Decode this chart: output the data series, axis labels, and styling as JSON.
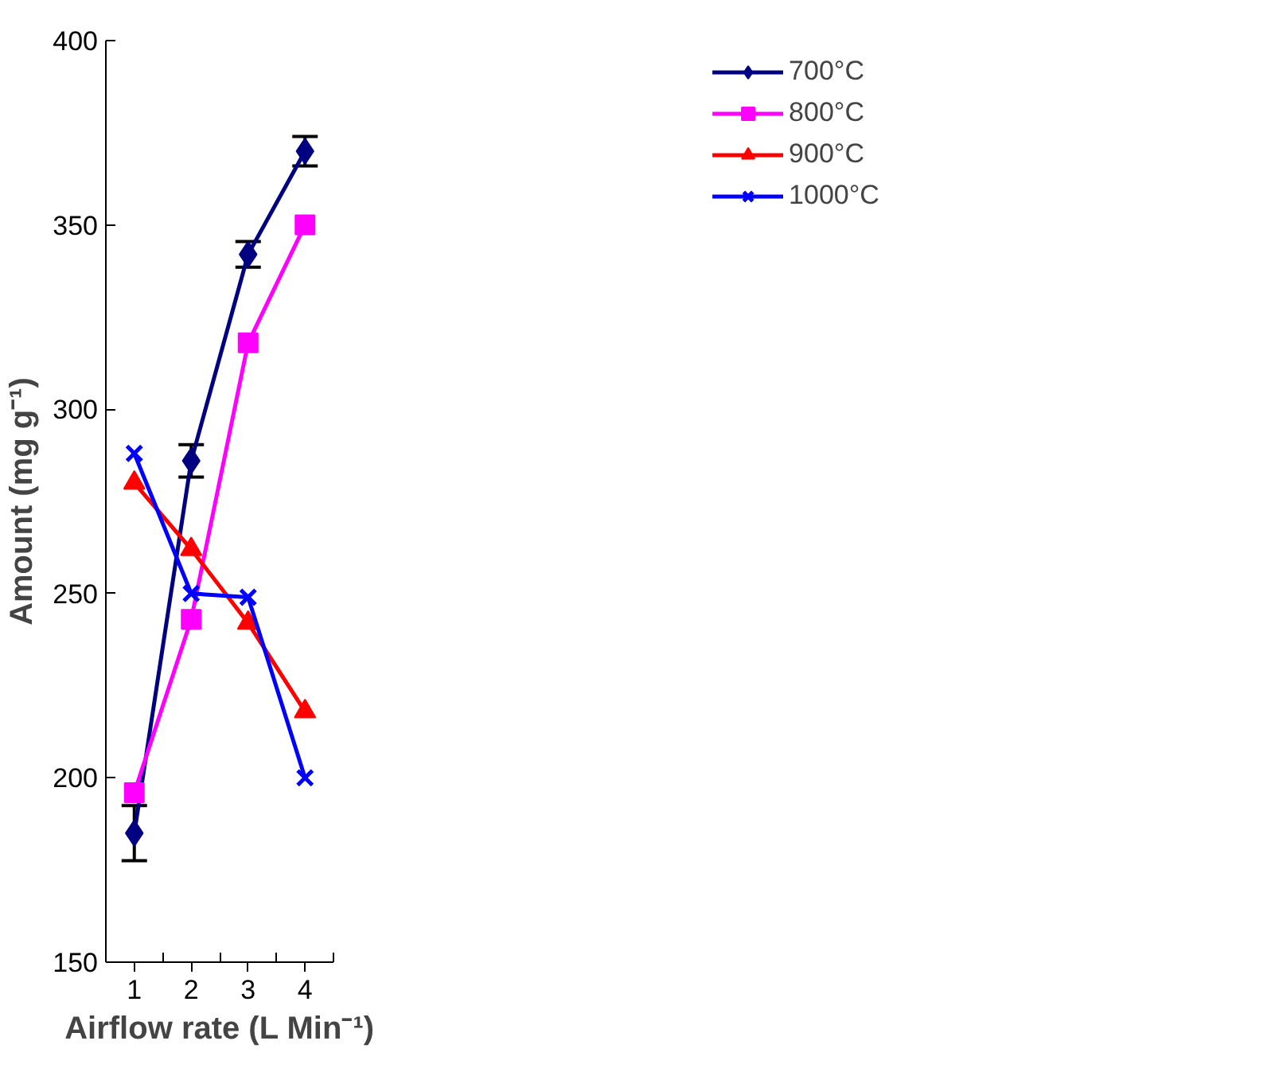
{
  "chart_data": {
    "type": "line",
    "xlabel": "Airflow rate (L Min⁻¹)",
    "ylabel": "Amount (mg g⁻¹)",
    "categories": [
      "1",
      "2",
      "3",
      "4"
    ],
    "ylim": [
      150,
      400
    ],
    "yticks": [
      150,
      200,
      250,
      300,
      350,
      400
    ],
    "grid": false,
    "legend": "top right",
    "line_style": "solid",
    "series": [
      {
        "name": "700°C",
        "color": "#000080",
        "marker": "diamond",
        "values": [
          185,
          286,
          342,
          370
        ],
        "errors": [
          7.5,
          4.4,
          3.5,
          4
        ]
      },
      {
        "name": "800°C",
        "color": "#ff00ff",
        "marker": "square",
        "values": [
          196,
          243,
          318,
          350
        ]
      },
      {
        "name": "900°C",
        "color": "#ff0000",
        "marker": "triangle",
        "values": [
          280,
          262,
          242,
          218
        ]
      },
      {
        "name": "1000°C",
        "color": "#0000ff",
        "marker": "cross",
        "values": [
          288,
          250,
          249,
          200
        ]
      }
    ]
  }
}
